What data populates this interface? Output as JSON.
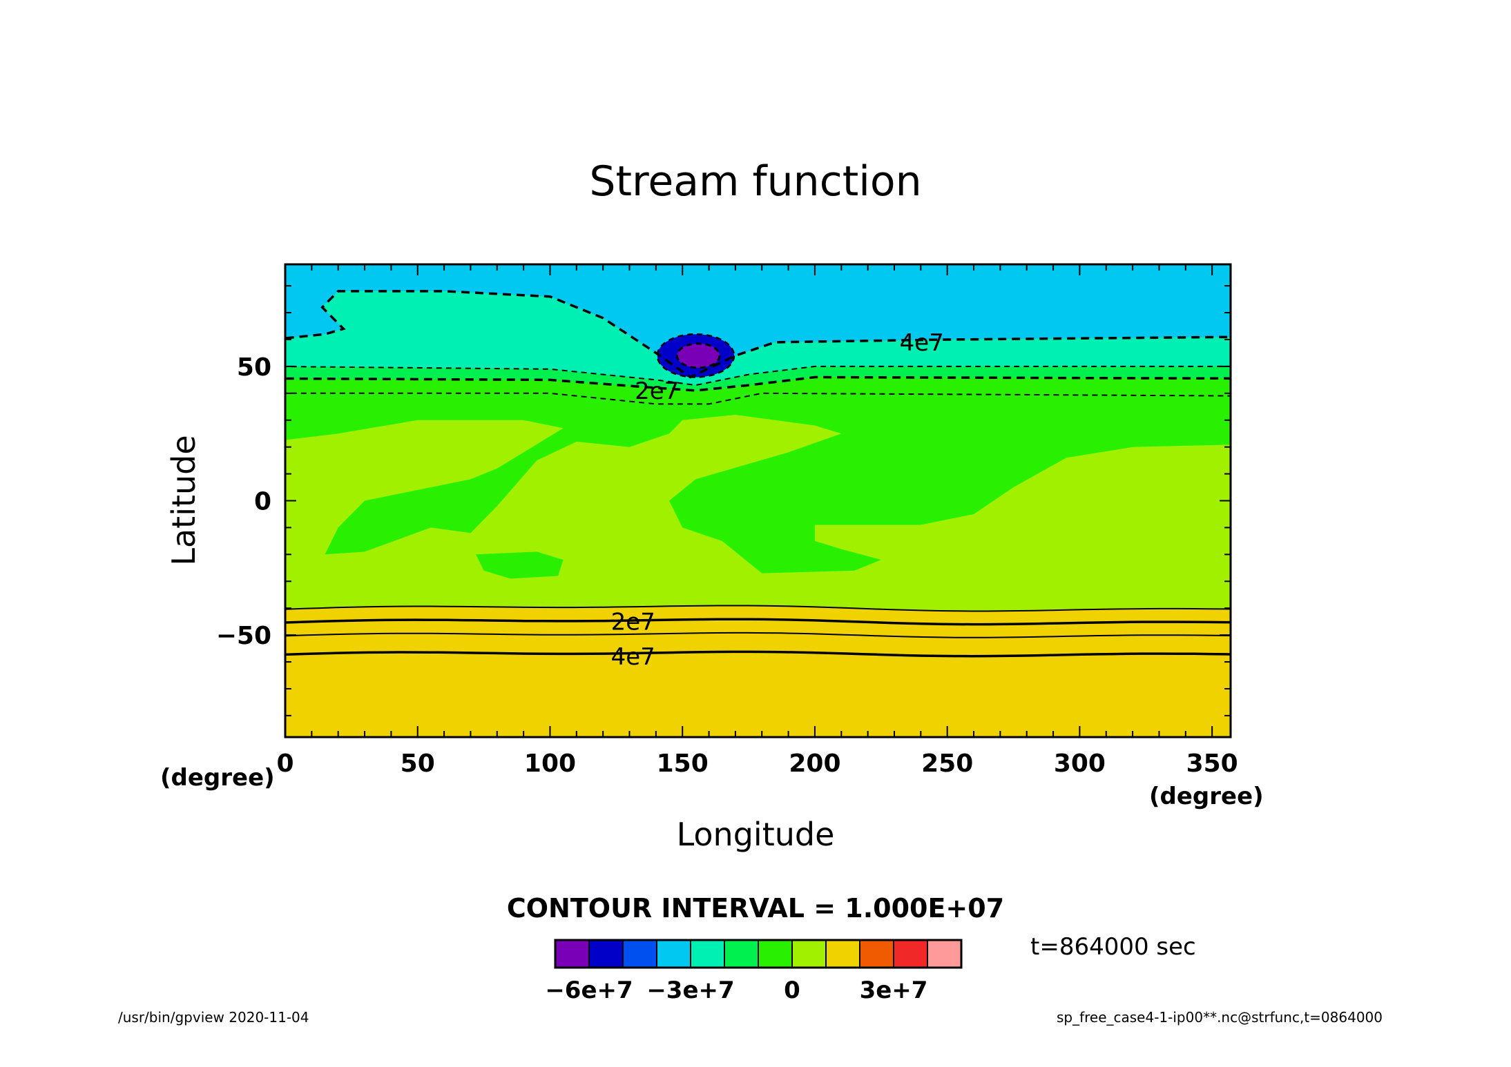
{
  "chart_data": {
    "type": "heatmap",
    "title": "Stream function",
    "xlabel": "Longitude",
    "ylabel": "Latitude",
    "x_unit": "(degree)",
    "y_unit": "(degree)",
    "xlim": [
      0,
      357
    ],
    "ylim": [
      -88,
      88
    ],
    "x_ticks": [
      0,
      50,
      100,
      150,
      200,
      250,
      300,
      350
    ],
    "y_ticks": [
      -50,
      0,
      50
    ],
    "contour_interval_text": "CONTOUR INTERVAL = 1.000E+07",
    "contour_interval": 10000000,
    "levels": [
      -60000000,
      -50000000,
      -40000000,
      -30000000,
      -20000000,
      -10000000,
      0,
      10000000,
      20000000,
      30000000,
      40000000,
      50000000
    ],
    "colors": [
      "#7a00b8",
      "#0000c8",
      "#0050f0",
      "#00c8f0",
      "#00f0b4",
      "#00f050",
      "#28f000",
      "#a0f000",
      "#f0d200",
      "#f05a00",
      "#f02828",
      "#ff9a9a"
    ],
    "colorbar_labels": [
      "−6e+7",
      "−3e+7",
      "0",
      "3e+7"
    ],
    "colorbar_label_positions": [
      1,
      4,
      7,
      10
    ],
    "contour_labels": [
      {
        "text": "4e7",
        "lon": 232,
        "lat": 59
      },
      {
        "text": "2e7",
        "lon": 132,
        "lat": 41
      },
      {
        "text": "2e7",
        "lon": 123,
        "lat": -45
      },
      {
        "text": "4e7",
        "lon": 123,
        "lat": -58
      }
    ],
    "bands": [
      {
        "color_index": 11,
        "y_top": -57
      },
      {
        "color_index": 10,
        "y_top": -50
      },
      {
        "color_index": 9,
        "y_top": -45
      },
      {
        "color_index": 8,
        "y_top": -40
      }
    ],
    "time_label": "t=864000 sec"
  },
  "footer": {
    "program": "/usr/bin/gpview   2020-11-04",
    "source": "sp_free_case4-1-ip00**.nc@strfunc,t=0864000"
  }
}
